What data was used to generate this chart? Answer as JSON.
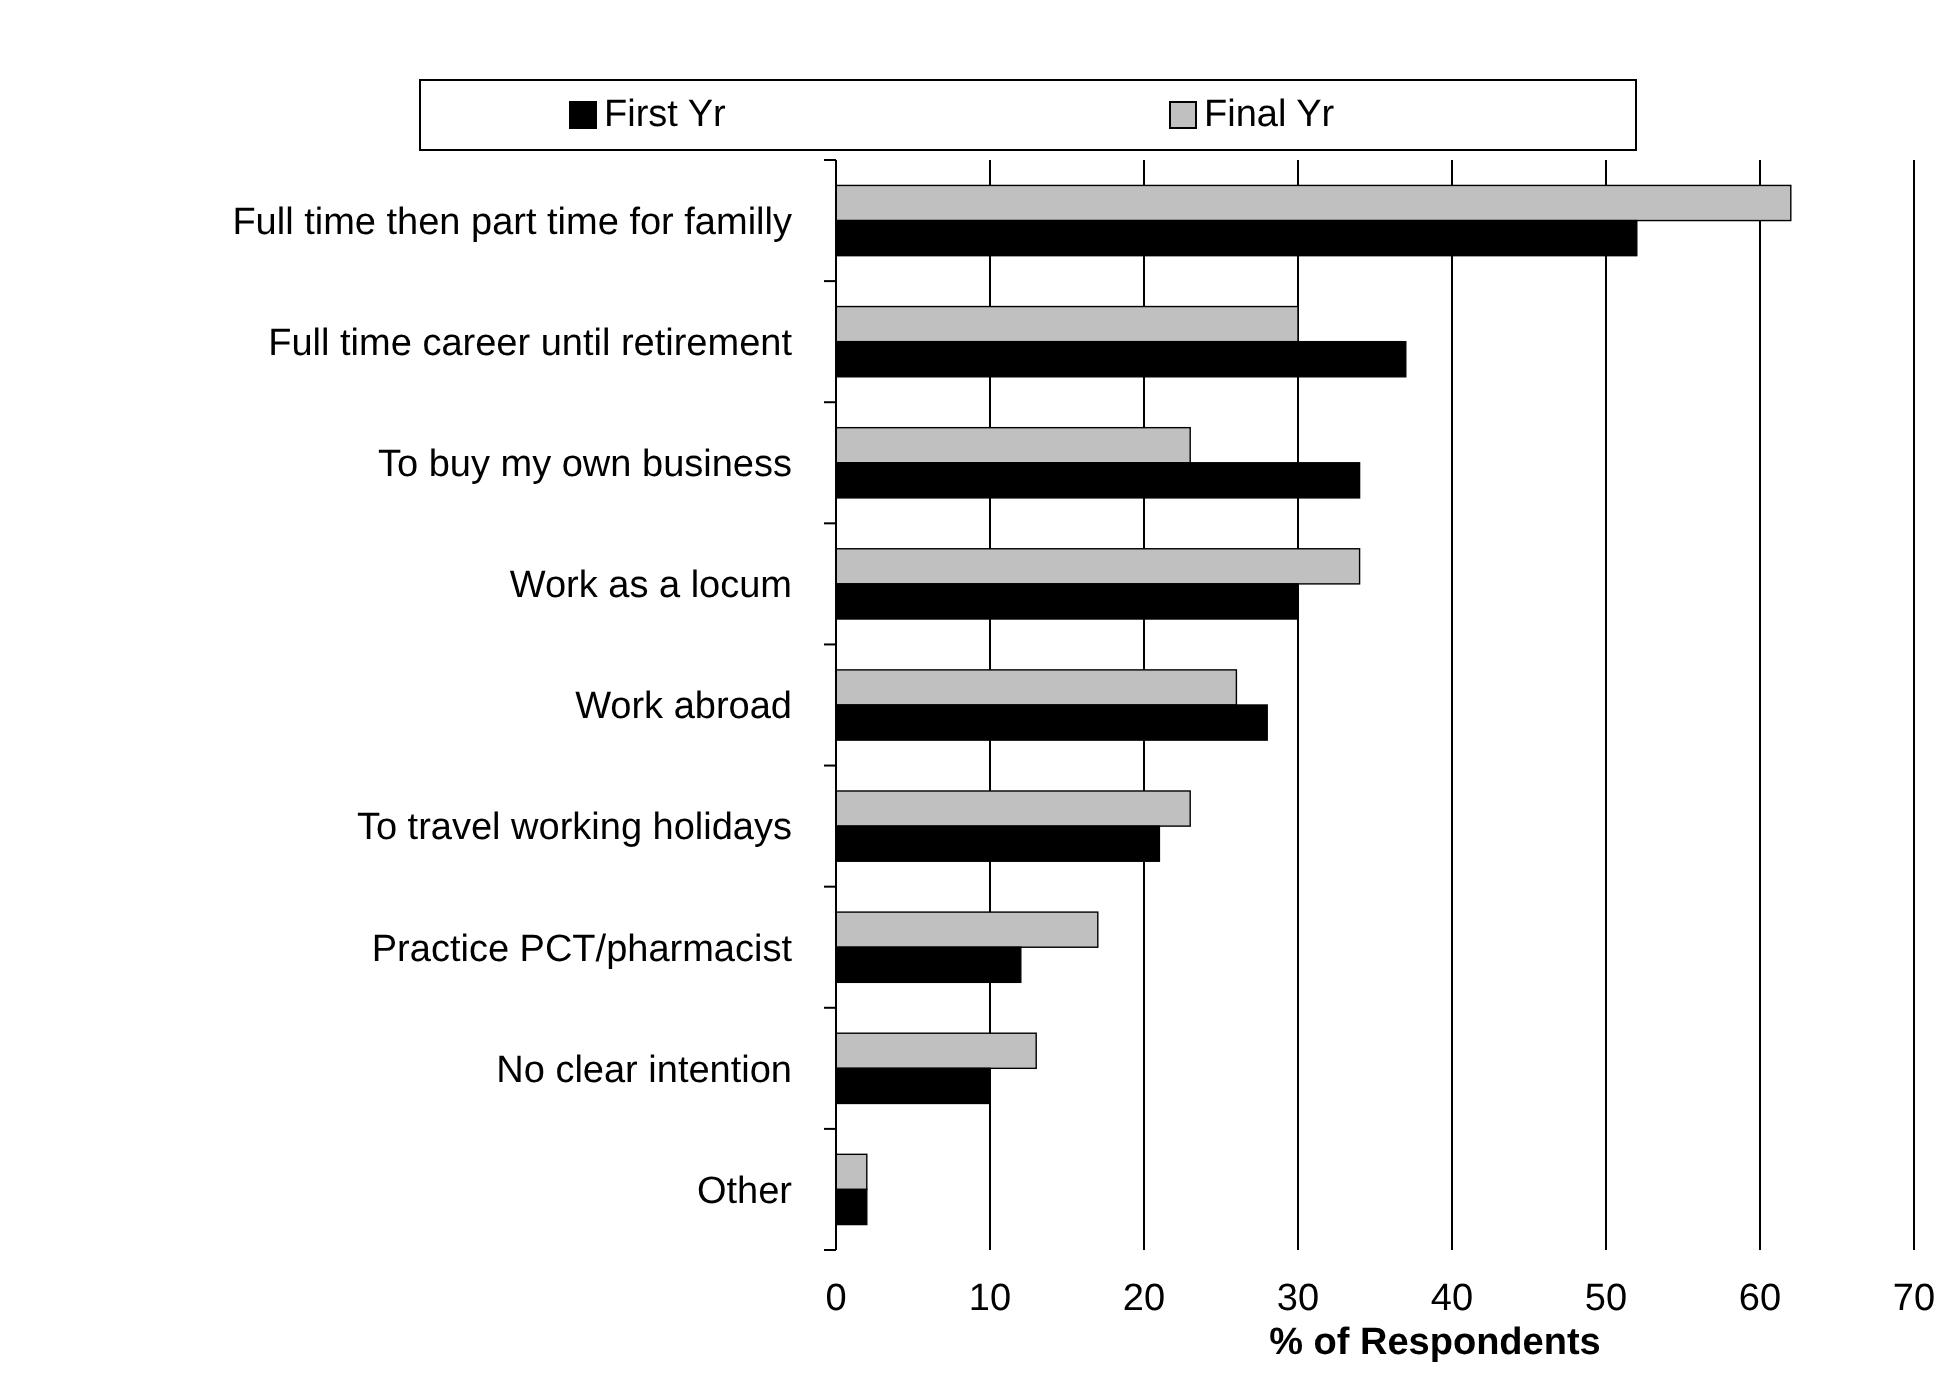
{
  "chart_data": {
    "type": "bar",
    "orientation": "horizontal",
    "xlabel": "% of Respondents",
    "categories": [
      "Full time then part time for familly",
      "Full time career until retirement",
      "To buy my own business",
      "Work as a locum",
      "Work abroad",
      "To travel working holidays",
      "Practice PCT/pharmacist",
      "No clear intention",
      "Other"
    ],
    "series": [
      {
        "name": "Final Yr",
        "color": "#c0c0c0",
        "values": [
          62,
          30,
          23,
          34,
          26,
          23,
          17,
          13,
          2
        ]
      },
      {
        "name": "First Yr",
        "color": "#000000",
        "values": [
          52,
          37,
          34,
          30,
          28,
          21,
          12,
          10,
          2
        ]
      }
    ],
    "xlim": [
      0,
      70
    ],
    "xticks": [
      0,
      10,
      20,
      30,
      40,
      50,
      60,
      70
    ],
    "grid": "x",
    "legend": "top"
  }
}
